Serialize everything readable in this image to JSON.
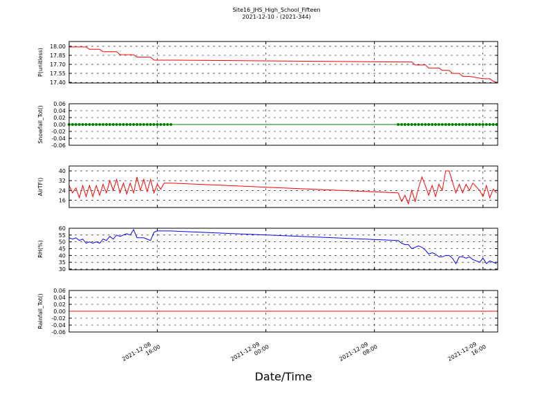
{
  "chart_data": {
    "type": "line",
    "title": "Site16_JHS_High_School_Fifteen",
    "subtitle": "2021-12-10 - (2021-344)",
    "xlabel": "Date/Time",
    "xlim": [
      "2021-12-08 09:30",
      "2021-12-09 17:05"
    ],
    "xticks": [
      "2021-12-08 16:00",
      "2021-12-09 00:00",
      "2021-12-09 08:00",
      "2021-12-09 16:00"
    ],
    "grid": true,
    "x": [
      "2021-12-08 09:30",
      "2021-12-08 09:45",
      "2021-12-08 10:00",
      "2021-12-08 10:15",
      "2021-12-08 10:30",
      "2021-12-08 10:45",
      "2021-12-08 11:00",
      "2021-12-08 11:15",
      "2021-12-08 11:30",
      "2021-12-08 11:45",
      "2021-12-08 12:00",
      "2021-12-08 12:15",
      "2021-12-08 12:30",
      "2021-12-08 12:45",
      "2021-12-08 13:00",
      "2021-12-08 13:15",
      "2021-12-08 13:30",
      "2021-12-08 13:45",
      "2021-12-08 14:00",
      "2021-12-08 14:15",
      "2021-12-08 14:30",
      "2021-12-08 14:45",
      "2021-12-08 15:00",
      "2021-12-08 15:15",
      "2021-12-08 15:30",
      "2021-12-08 15:45",
      "2021-12-08 16:00",
      "2021-12-08 16:15",
      "2021-12-08 16:30",
      "2021-12-08 16:45",
      "2021-12-08 17:00",
      "2021-12-09 09:45",
      "2021-12-09 10:00",
      "2021-12-09 10:15",
      "2021-12-09 10:30",
      "2021-12-09 10:45",
      "2021-12-09 11:00",
      "2021-12-09 11:15",
      "2021-12-09 11:30",
      "2021-12-09 11:45",
      "2021-12-09 12:00",
      "2021-12-09 12:15",
      "2021-12-09 12:30",
      "2021-12-09 12:45",
      "2021-12-09 13:00",
      "2021-12-09 13:15",
      "2021-12-09 13:30",
      "2021-12-09 13:45",
      "2021-12-09 14:00",
      "2021-12-09 14:15",
      "2021-12-09 14:30",
      "2021-12-09 14:45",
      "2021-12-09 15:00",
      "2021-12-09 15:15",
      "2021-12-09 15:30",
      "2021-12-09 15:45",
      "2021-12-09 16:00",
      "2021-12-09 16:15",
      "2021-12-09 16:30",
      "2021-12-09 16:45",
      "2021-12-09 17:00"
    ],
    "panels": [
      {
        "ylabel": "P(unitless)",
        "ylim": [
          17.39,
          18.08
        ],
        "yticks": [
          {
            "value": 18,
            "label": "18.00"
          },
          17.85,
          {
            "value": 17.7,
            "label": "17.70"
          },
          17.55,
          {
            "value": 17.4,
            "label": "17.40"
          }
        ],
        "series": [
          {
            "color": "#ff0000",
            "marker": false,
            "values": [
              17.99,
              17.99,
              17.99,
              17.99,
              17.99,
              17.99,
              17.95,
              17.95,
              17.95,
              17.95,
              17.91,
              17.91,
              17.91,
              17.91,
              17.91,
              17.86,
              17.86,
              17.86,
              17.86,
              17.86,
              17.82,
              17.82,
              17.82,
              17.82,
              17.82,
              17.77,
              17.77,
              17.77,
              17.77,
              17.77,
              17.77,
              17.74,
              17.74,
              17.74,
              17.74,
              17.74,
              17.69,
              17.69,
              17.69,
              17.69,
              17.64,
              17.64,
              17.64,
              17.64,
              17.6,
              17.6,
              17.6,
              17.55,
              17.55,
              17.55,
              17.5,
              17.5,
              17.5,
              17.49,
              17.48,
              17.47,
              17.46,
              17.46,
              17.46,
              17.42,
              17.4
            ]
          }
        ]
      },
      {
        "ylabel": "Snowfall_Tot()",
        "ylim": [
          -0.06,
          0.06
        ],
        "yticks": [
          0.06,
          0.04,
          0.02,
          {
            "value": 0,
            "label": "0.00"
          },
          -0.02,
          -0.04,
          -0.06
        ],
        "series": [
          {
            "color": "#008000",
            "marker": true,
            "values": [
              0,
              0,
              0,
              0,
              0,
              0,
              0,
              0,
              0,
              0,
              0,
              0,
              0,
              0,
              0,
              0,
              0,
              0,
              0,
              0,
              0,
              0,
              0,
              0,
              0,
              0,
              0,
              0,
              0,
              0,
              0,
              0,
              0,
              0,
              0,
              0,
              0,
              0,
              0,
              0,
              0,
              0,
              0,
              0,
              0,
              0,
              0,
              0,
              0,
              0,
              0,
              0,
              0,
              0,
              0,
              0,
              0,
              0,
              0,
              0,
              0
            ]
          }
        ]
      },
      {
        "ylabel": "AirTF()",
        "ylim": [
          10,
          44
        ],
        "yticks": [
          40,
          32,
          24,
          16
        ],
        "series": [
          {
            "color": "#ff0000",
            "marker": false,
            "values": [
              28,
              22,
              26,
              18,
              28,
              19,
              28,
              19,
              28,
              20,
              29,
              22,
              32,
              24,
              33,
              22,
              30,
              21,
              30,
              22,
              35,
              24,
              33,
              23,
              33,
              22,
              29,
              25,
              30,
              30,
              30,
              22,
              15,
              20,
              13,
              24,
              15,
              26,
              35,
              28,
              20,
              28,
              19,
              29,
              24,
              40,
              40,
              31,
              22,
              29,
              22,
              29,
              24,
              30,
              27,
              24,
              19,
              28,
              18,
              25,
              22
            ]
          }
        ]
      },
      {
        "ylabel": "RH(%)",
        "ylim": [
          29.5,
          60
        ],
        "yticks": [
          60,
          55,
          50,
          45,
          40,
          35,
          30
        ],
        "series": [
          {
            "color": "#0000ff",
            "marker": false,
            "values": [
              53,
              52,
              53,
              51,
              52,
              49,
              50,
              49,
              50,
              49,
              52,
              51,
              54,
              52,
              55,
              54,
              55,
              56,
              55,
              59,
              53,
              53,
              53,
              52,
              51,
              57,
              58,
              58,
              58,
              58,
              58,
              51,
              49,
              48,
              48,
              45,
              46,
              47,
              46,
              44,
              41,
              42,
              41,
              39,
              39,
              40,
              40,
              38,
              34,
              39,
              39,
              38,
              39,
              37,
              36,
              35,
              38,
              34,
              36,
              35,
              34
            ]
          }
        ]
      },
      {
        "ylabel": "Rainfall_Tot()",
        "ylim": [
          -0.06,
          0.06
        ],
        "yticks": [
          0.06,
          0.04,
          0.02,
          {
            "value": 0,
            "label": "0.00"
          },
          -0.02,
          -0.04,
          -0.06
        ],
        "series": [
          {
            "color": "#ff0000",
            "marker": false,
            "values": [
              0,
              0,
              0,
              0,
              0,
              0,
              0,
              0,
              0,
              0,
              0,
              0,
              0,
              0,
              0,
              0,
              0,
              0,
              0,
              0,
              0,
              0,
              0,
              0,
              0,
              0,
              0,
              0,
              0,
              0,
              0,
              0,
              0,
              0,
              0,
              0,
              0,
              0,
              0,
              0,
              0,
              0,
              0,
              0,
              0,
              0,
              0,
              0,
              0,
              0,
              0,
              0,
              0,
              0,
              0,
              0,
              0,
              0,
              0,
              0,
              0
            ]
          }
        ]
      }
    ]
  }
}
